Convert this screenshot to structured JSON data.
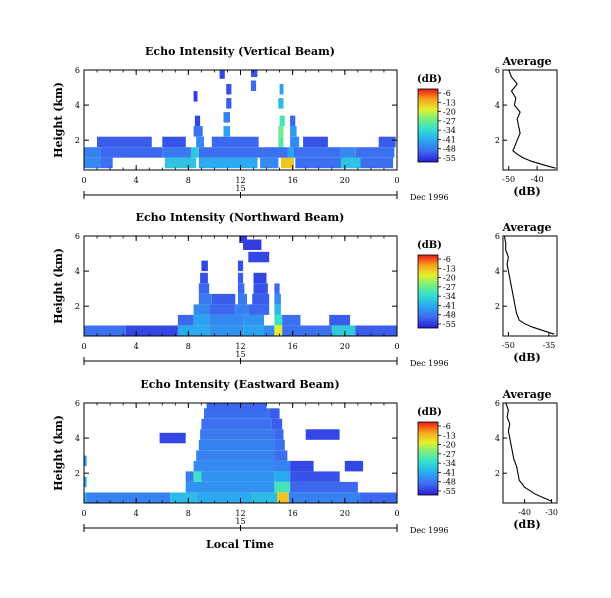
{
  "figure": {
    "bottom_label": "Local Time"
  },
  "colorbar": {
    "unit": "(dB)",
    "ticks": [
      "-6",
      "-13",
      "-20",
      "-27",
      "-34",
      "-41",
      "-48",
      "-55"
    ]
  },
  "chart_data": [
    {
      "type": "heatmap",
      "title": "Echo Intensity (Vertical Beam)",
      "ylabel": "Height (km)",
      "y_ticks": [
        "2",
        "4",
        "6"
      ],
      "ylim": [
        0.3,
        6.0
      ],
      "x_ticks": [
        "0",
        "4",
        "8",
        "12",
        "16",
        "20",
        "0"
      ],
      "xlim": [
        0,
        24
      ],
      "date_tick": "15",
      "date_label": "Dec 1996",
      "color_range_db": [
        -55,
        -6
      ],
      "cells": [
        [
          0,
          0.4,
          1.3,
          -44
        ],
        [
          1.3,
          0.4,
          0.9,
          -47
        ],
        [
          6.2,
          0.4,
          2.4,
          -37
        ],
        [
          8.8,
          0.4,
          4.5,
          -40
        ],
        [
          13.5,
          0.4,
          1.4,
          -44
        ],
        [
          15.1,
          0.4,
          1.0,
          -16
        ],
        [
          16.2,
          0.4,
          3.8,
          -47
        ],
        [
          19.7,
          0.4,
          1.5,
          -37
        ],
        [
          21.2,
          0.4,
          2.5,
          -47
        ],
        [
          0,
          1.0,
          1.3,
          -45
        ],
        [
          1.3,
          1.0,
          4.7,
          -48
        ],
        [
          6.0,
          1.0,
          2.2,
          -46
        ],
        [
          8.2,
          1.0,
          0.6,
          -36
        ],
        [
          8.8,
          1.0,
          6.8,
          -47
        ],
        [
          15.6,
          1.0,
          0.5,
          -41
        ],
        [
          16.1,
          1.0,
          3.6,
          -47
        ],
        [
          19.7,
          1.0,
          1.1,
          -44
        ],
        [
          20.8,
          1.0,
          3.0,
          -47
        ],
        [
          1.0,
          1.6,
          4.2,
          -49
        ],
        [
          6.0,
          1.6,
          1.8,
          -50
        ],
        [
          8.6,
          1.6,
          0.6,
          -44
        ],
        [
          9.8,
          1.6,
          3.6,
          -48
        ],
        [
          14.9,
          1.6,
          0.4,
          -29
        ],
        [
          15.8,
          1.6,
          0.7,
          -44
        ],
        [
          16.8,
          1.6,
          1.9,
          -50
        ],
        [
          22.6,
          1.6,
          1.3,
          -49
        ],
        [
          8.4,
          2.2,
          0.7,
          -47
        ],
        [
          10.7,
          2.2,
          0.5,
          -41
        ],
        [
          14.9,
          2.2,
          0.4,
          -27
        ],
        [
          15.8,
          2.2,
          0.5,
          -42
        ],
        [
          8.5,
          2.8,
          0.4,
          -51
        ],
        [
          10.7,
          3.0,
          0.5,
          -45
        ],
        [
          15.0,
          2.8,
          0.4,
          -31
        ],
        [
          15.8,
          2.8,
          0.4,
          -48
        ],
        [
          10.9,
          3.8,
          0.4,
          -49
        ],
        [
          8.4,
          4.2,
          0.3,
          -52
        ],
        [
          14.9,
          3.8,
          0.4,
          -38
        ],
        [
          10.9,
          4.6,
          0.4,
          -50
        ],
        [
          15.0,
          4.6,
          0.3,
          -41
        ],
        [
          12.8,
          4.8,
          0.4,
          -48
        ],
        [
          12.8,
          5.6,
          0.5,
          -50
        ],
        [
          10.4,
          5.5,
          0.4,
          -51
        ]
      ],
      "average_profile": {
        "title": "Average",
        "xlabel": "(dB)",
        "x_ticks": [
          "-50",
          "-40"
        ],
        "xlim": [
          -52,
          -33
        ],
        "y_ticks": [
          "2",
          "4",
          "6"
        ],
        "ylim": [
          0.3,
          6.0
        ],
        "heights": [
          0.4,
          0.6,
          0.8,
          1.0,
          1.2,
          1.4,
          1.6,
          2.0,
          2.4,
          2.8,
          3.2,
          3.6,
          4.0,
          4.4,
          4.8,
          5.2,
          5.6,
          6.0
        ],
        "values_db": [
          -33.5,
          -38,
          -42,
          -45,
          -47,
          -48.5,
          -48,
          -47,
          -46,
          -46.5,
          -47,
          -46,
          -48,
          -47.5,
          -49,
          -47,
          -49,
          -50
        ]
      }
    },
    {
      "type": "heatmap",
      "title": "Echo Intensity (Northward Beam)",
      "ylabel": "Height (km)",
      "y_ticks": [
        "2",
        "4",
        "6"
      ],
      "ylim": [
        0.3,
        6.0
      ],
      "x_ticks": [
        "0",
        "4",
        "8",
        "12",
        "16",
        "20",
        "0"
      ],
      "xlim": [
        0,
        24
      ],
      "date_tick": "15",
      "date_label": "Dec 1996",
      "color_range_db": [
        -55,
        -6
      ],
      "cells": [
        [
          0,
          0.3,
          3.2,
          -47
        ],
        [
          3.2,
          0.3,
          4.0,
          -51
        ],
        [
          7.2,
          0.3,
          2.4,
          -40
        ],
        [
          9.6,
          0.3,
          2.6,
          -43
        ],
        [
          12.2,
          0.3,
          1.6,
          -41
        ],
        [
          13.8,
          0.3,
          0.8,
          -44
        ],
        [
          14.6,
          0.3,
          0.6,
          -20
        ],
        [
          15.2,
          0.3,
          3.8,
          -47
        ],
        [
          19.0,
          0.3,
          1.8,
          -36
        ],
        [
          20.8,
          0.3,
          3.2,
          -49
        ],
        [
          7.2,
          0.9,
          1.2,
          -48
        ],
        [
          8.4,
          0.9,
          1.2,
          -41
        ],
        [
          9.6,
          0.9,
          2.6,
          -44
        ],
        [
          12.2,
          0.9,
          1.6,
          -43
        ],
        [
          14.6,
          0.9,
          0.6,
          -32
        ],
        [
          15.2,
          0.9,
          1.4,
          -47
        ],
        [
          18.8,
          0.9,
          1.6,
          -49
        ],
        [
          8.4,
          1.5,
          1.2,
          -44
        ],
        [
          9.6,
          1.5,
          2.0,
          -48
        ],
        [
          11.6,
          1.5,
          1.0,
          -45
        ],
        [
          12.6,
          1.5,
          1.6,
          -48
        ],
        [
          14.6,
          1.5,
          0.5,
          -38
        ],
        [
          8.8,
          2.1,
          1.0,
          -46
        ],
        [
          9.8,
          2.1,
          1.8,
          -49
        ],
        [
          11.8,
          2.1,
          0.7,
          -46
        ],
        [
          12.9,
          2.1,
          1.3,
          -49
        ],
        [
          14.6,
          2.1,
          0.5,
          -44
        ],
        [
          8.8,
          2.7,
          0.8,
          -48
        ],
        [
          11.8,
          2.7,
          0.5,
          -48
        ],
        [
          13.0,
          2.7,
          1.1,
          -50
        ],
        [
          14.6,
          2.7,
          0.4,
          -48
        ],
        [
          8.9,
          3.3,
          0.6,
          -50
        ],
        [
          11.8,
          3.3,
          0.4,
          -49
        ],
        [
          13.0,
          3.3,
          1.0,
          -51
        ],
        [
          9.0,
          4.0,
          0.5,
          -51
        ],
        [
          11.8,
          4.0,
          0.4,
          -50
        ],
        [
          12.6,
          4.5,
          1.6,
          -51
        ],
        [
          12.2,
          5.2,
          1.4,
          -52
        ],
        [
          11.9,
          5.6,
          0.6,
          -52
        ]
      ],
      "average_profile": {
        "title": "Average",
        "xlabel": "(dB)",
        "x_ticks": [
          "-50",
          "-35"
        ],
        "xlim": [
          -52,
          -32
        ],
        "y_ticks": [
          "2",
          "4",
          "6"
        ],
        "ylim": [
          0.3,
          6.0
        ],
        "heights": [
          0.4,
          0.6,
          0.8,
          1.0,
          1.2,
          1.4,
          1.6,
          2.0,
          2.4,
          2.8,
          3.2,
          3.6,
          4.0,
          4.4,
          4.8,
          5.2,
          5.6,
          6.0
        ],
        "values_db": [
          -33,
          -37,
          -41,
          -44,
          -46,
          -46.5,
          -47,
          -47.5,
          -48,
          -48.5,
          -49,
          -49.5,
          -50,
          -50.5,
          -50,
          -51,
          -51,
          -51.5
        ]
      }
    },
    {
      "type": "heatmap",
      "title": "Echo Intensity (Eastward Beam)",
      "ylabel": "Height (km)",
      "y_ticks": [
        "2",
        "4",
        "6"
      ],
      "ylim": [
        0.3,
        6.0
      ],
      "x_ticks": [
        "0",
        "4",
        "8",
        "12",
        "16",
        "20",
        "0"
      ],
      "xlim": [
        0,
        24
      ],
      "date_tick": "15",
      "date_label": "Dec 1996",
      "color_range_db": [
        -55,
        -6
      ],
      "cells": [
        [
          0,
          0.3,
          6.6,
          -45
        ],
        [
          6.6,
          0.3,
          2.0,
          -38
        ],
        [
          8.6,
          0.3,
          4.2,
          -40
        ],
        [
          12.8,
          0.3,
          2.0,
          -38
        ],
        [
          14.8,
          0.3,
          0.9,
          -16
        ],
        [
          15.7,
          0.3,
          5.5,
          -45
        ],
        [
          21.2,
          0.3,
          2.8,
          -48
        ],
        [
          7.8,
          0.9,
          6.8,
          -43
        ],
        [
          14.6,
          0.9,
          1.2,
          -31
        ],
        [
          15.8,
          0.9,
          5.2,
          -48
        ],
        [
          7.8,
          1.5,
          0.6,
          -46
        ],
        [
          8.4,
          1.5,
          0.6,
          -32
        ],
        [
          9.0,
          1.5,
          5.6,
          -43
        ],
        [
          14.6,
          1.5,
          1.2,
          -40
        ],
        [
          15.8,
          1.5,
          3.8,
          -50
        ],
        [
          8.4,
          2.1,
          6.2,
          -44
        ],
        [
          14.6,
          2.1,
          1.2,
          -45
        ],
        [
          15.8,
          2.1,
          1.8,
          -51
        ],
        [
          20.0,
          2.1,
          1.4,
          -51
        ],
        [
          8.6,
          2.7,
          6.0,
          -45
        ],
        [
          14.6,
          2.7,
          1.0,
          -47
        ],
        [
          8.8,
          3.3,
          5.8,
          -45
        ],
        [
          14.6,
          3.3,
          0.8,
          -47
        ],
        [
          5.8,
          3.7,
          2.0,
          -51
        ],
        [
          8.9,
          3.9,
          5.7,
          -46
        ],
        [
          14.6,
          3.9,
          0.7,
          -48
        ],
        [
          17.0,
          3.9,
          2.6,
          -51
        ],
        [
          9.0,
          4.5,
          5.4,
          -47
        ],
        [
          14.4,
          4.5,
          0.8,
          -49
        ],
        [
          9.2,
          5.1,
          5.0,
          -47
        ],
        [
          14.2,
          5.1,
          0.8,
          -49
        ],
        [
          9.4,
          5.5,
          4.6,
          -48
        ],
        [
          0,
          0.3,
          0.2,
          -38
        ],
        [
          0,
          1.2,
          0.2,
          -40
        ],
        [
          0,
          2.4,
          0.2,
          -43
        ]
      ],
      "average_profile": {
        "title": "Average",
        "xlabel": "(dB)",
        "x_ticks": [
          "-40",
          "-30"
        ],
        "xlim": [
          -48,
          -28
        ],
        "y_ticks": [
          "2",
          "4",
          "6"
        ],
        "ylim": [
          0.3,
          6.0
        ],
        "heights": [
          0.4,
          0.6,
          0.8,
          1.0,
          1.2,
          1.4,
          1.6,
          2.0,
          2.4,
          2.8,
          3.2,
          3.6,
          4.0,
          4.4,
          4.8,
          5.2,
          5.6,
          6.0
        ],
        "values_db": [
          -30,
          -33,
          -36,
          -38,
          -40,
          -41,
          -42,
          -42.5,
          -43,
          -44,
          -44.5,
          -45,
          -45.5,
          -46,
          -45.5,
          -46.5,
          -46,
          -47
        ]
      }
    }
  ]
}
